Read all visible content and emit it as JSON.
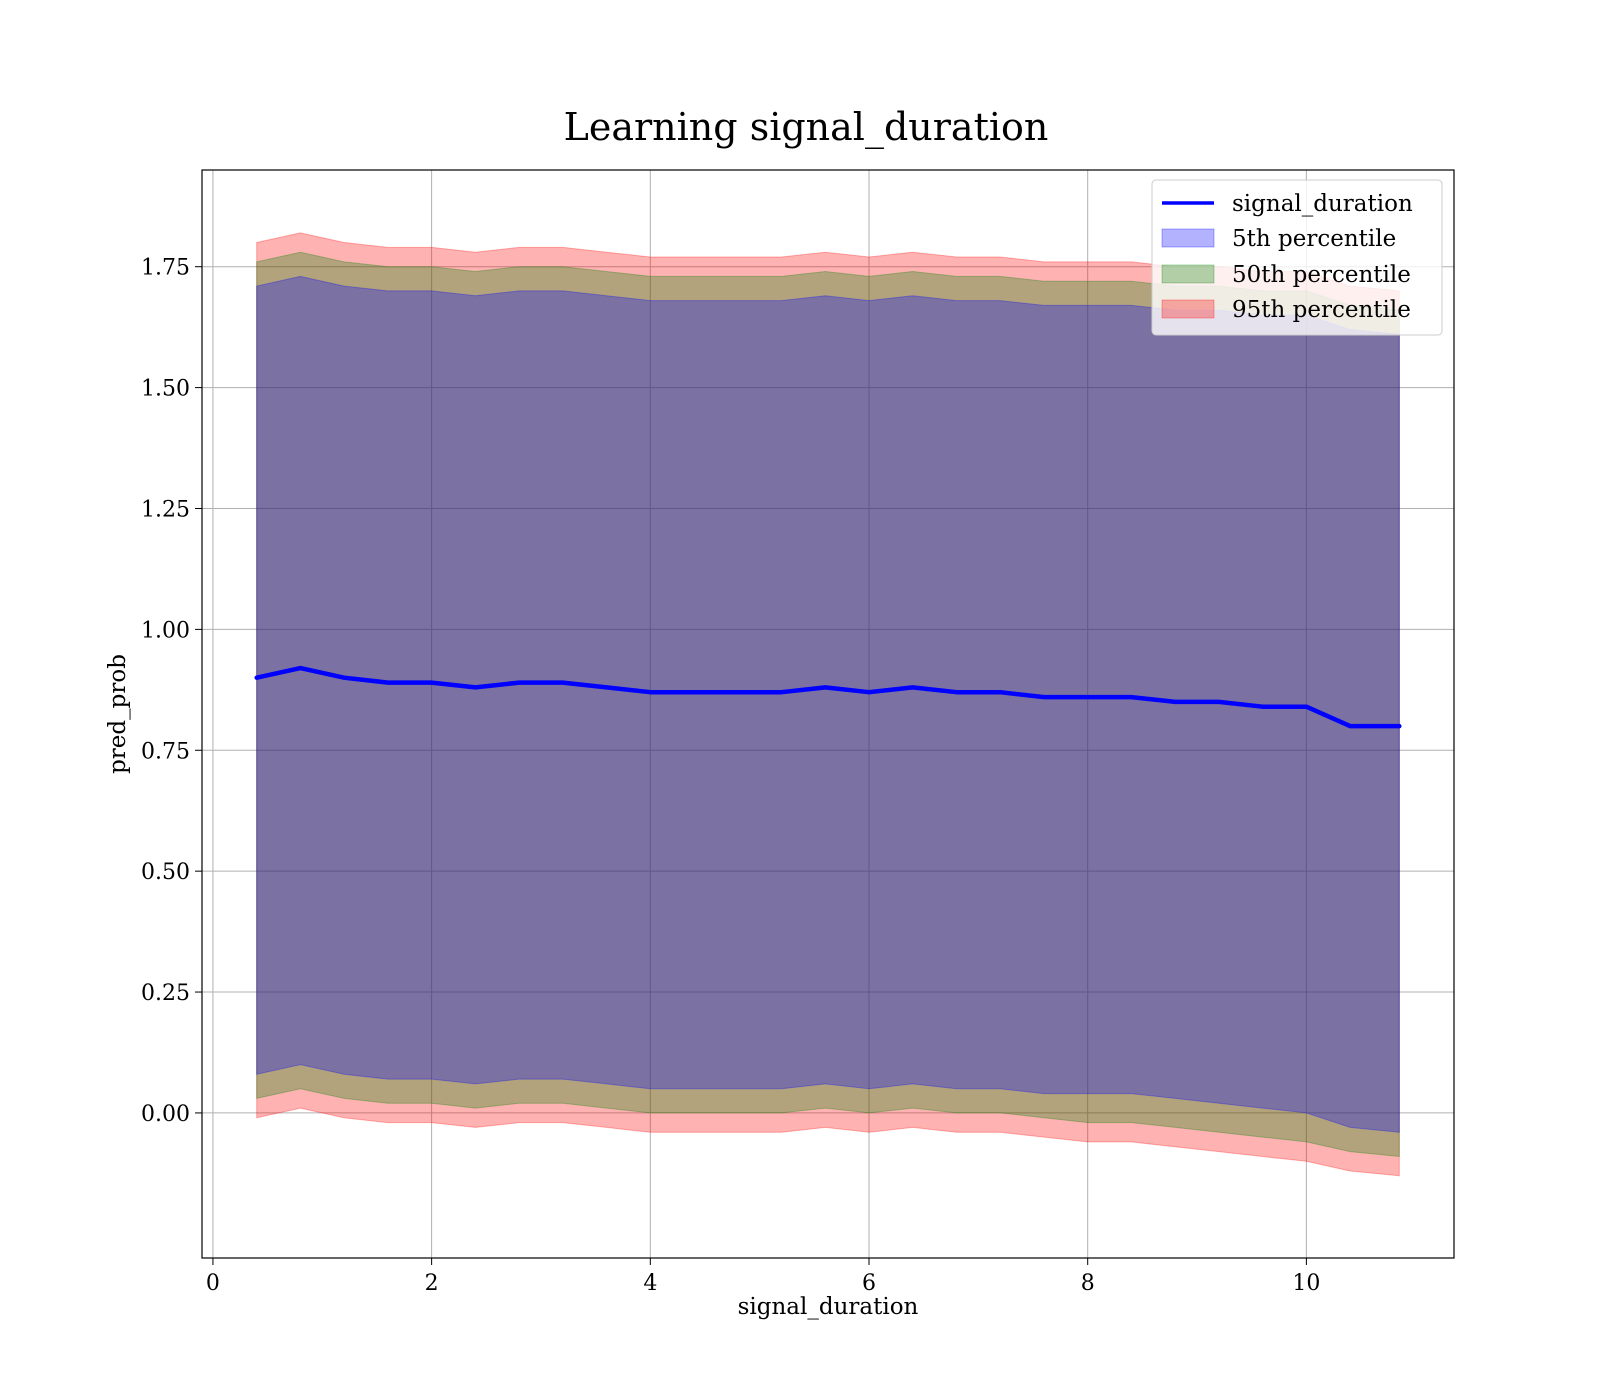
{
  "chart_data": {
    "type": "area",
    "title": "Learning signal_duration",
    "xlabel": "signal_duration",
    "ylabel": "pred_prob",
    "xlim": [
      -0.1,
      11.35
    ],
    "ylim": [
      -0.3,
      1.95
    ],
    "x_ticks": [
      0,
      2,
      4,
      6,
      8,
      10
    ],
    "x_tick_labels": [
      "0",
      "2",
      "4",
      "6",
      "8",
      "10"
    ],
    "y_ticks": [
      0.0,
      0.25,
      0.5,
      0.75,
      1.0,
      1.25,
      1.5,
      1.75
    ],
    "y_tick_labels": [
      "0.00",
      "0.25",
      "0.50",
      "0.75",
      "1.00",
      "1.25",
      "1.50",
      "1.75"
    ],
    "grid": true,
    "legend_position": "top-right",
    "x": [
      0.4,
      0.8,
      1.2,
      1.6,
      2.0,
      2.4,
      2.8,
      3.2,
      3.6,
      4.0,
      4.4,
      4.8,
      5.2,
      5.6,
      6.0,
      6.4,
      6.8,
      7.2,
      7.6,
      8.0,
      8.4,
      8.8,
      9.2,
      9.6,
      10.0,
      10.4,
      10.85
    ],
    "line": {
      "name": "signal_duration",
      "color": "#0000ff",
      "values": [
        0.9,
        0.92,
        0.9,
        0.89,
        0.89,
        0.88,
        0.89,
        0.89,
        0.88,
        0.87,
        0.87,
        0.87,
        0.87,
        0.88,
        0.87,
        0.88,
        0.87,
        0.87,
        0.86,
        0.86,
        0.86,
        0.85,
        0.85,
        0.84,
        0.84,
        0.8,
        0.8
      ]
    },
    "bands": [
      {
        "name": "5th percentile",
        "color": "#0000ff",
        "lower": [
          0.08,
          0.1,
          0.08,
          0.07,
          0.07,
          0.06,
          0.07,
          0.07,
          0.06,
          0.05,
          0.05,
          0.05,
          0.05,
          0.06,
          0.05,
          0.06,
          0.05,
          0.05,
          0.04,
          0.04,
          0.04,
          0.03,
          0.02,
          0.01,
          0.0,
          -0.03,
          -0.04
        ],
        "upper": [
          1.71,
          1.73,
          1.71,
          1.7,
          1.7,
          1.69,
          1.7,
          1.7,
          1.69,
          1.68,
          1.68,
          1.68,
          1.68,
          1.69,
          1.68,
          1.69,
          1.68,
          1.68,
          1.67,
          1.67,
          1.67,
          1.66,
          1.66,
          1.65,
          1.65,
          1.62,
          1.61
        ]
      },
      {
        "name": "50th percentile",
        "color": "#008000",
        "lower": [
          0.03,
          0.05,
          0.03,
          0.02,
          0.02,
          0.01,
          0.02,
          0.02,
          0.01,
          0.0,
          0.0,
          0.0,
          0.0,
          0.01,
          0.0,
          0.01,
          0.0,
          0.0,
          -0.01,
          -0.02,
          -0.02,
          -0.03,
          -0.04,
          -0.05,
          -0.06,
          -0.08,
          -0.09
        ],
        "upper": [
          1.76,
          1.78,
          1.76,
          1.75,
          1.75,
          1.74,
          1.75,
          1.75,
          1.74,
          1.73,
          1.73,
          1.73,
          1.73,
          1.74,
          1.73,
          1.74,
          1.73,
          1.73,
          1.72,
          1.72,
          1.72,
          1.71,
          1.71,
          1.7,
          1.7,
          1.67,
          1.66
        ]
      },
      {
        "name": "95th percentile",
        "color": "#ff0000",
        "lower": [
          -0.01,
          0.01,
          -0.01,
          -0.02,
          -0.02,
          -0.03,
          -0.02,
          -0.02,
          -0.03,
          -0.04,
          -0.04,
          -0.04,
          -0.04,
          -0.03,
          -0.04,
          -0.03,
          -0.04,
          -0.04,
          -0.05,
          -0.06,
          -0.06,
          -0.07,
          -0.08,
          -0.09,
          -0.1,
          -0.12,
          -0.13
        ],
        "upper": [
          1.8,
          1.82,
          1.8,
          1.79,
          1.79,
          1.78,
          1.79,
          1.79,
          1.78,
          1.77,
          1.77,
          1.77,
          1.77,
          1.78,
          1.77,
          1.78,
          1.77,
          1.77,
          1.76,
          1.76,
          1.76,
          1.75,
          1.75,
          1.74,
          1.74,
          1.71,
          1.7
        ]
      }
    ]
  }
}
